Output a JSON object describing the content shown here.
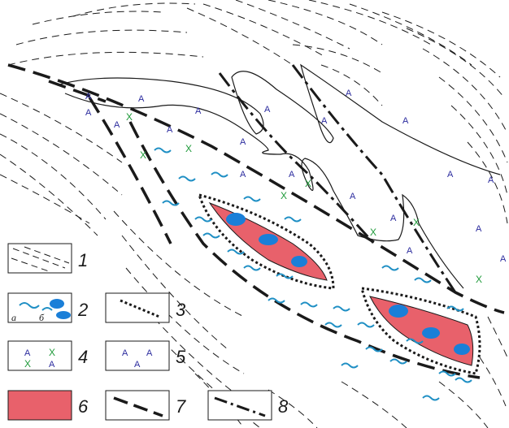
{
  "colors": {
    "ore_body": "#e8616b",
    "blue_blob": "#1a7fd8",
    "wave": "#1f8fc4",
    "augite_x": "#1f9a3a",
    "a_symbol": "#2b2b9e",
    "line": "#1a1a1a"
  },
  "symbols": {
    "a": "A",
    "x": "X",
    "sub_a": "а",
    "sub_b": "б"
  },
  "legend": [
    {
      "num": "1",
      "icon": "dashed-hatch-icon"
    },
    {
      "num": "2",
      "icon": "wave-and-blob-icon"
    },
    {
      "num": "3",
      "icon": "dotted-line-icon"
    },
    {
      "num": "4",
      "icon": "a-x-symbols-icon"
    },
    {
      "num": "5",
      "icon": "a-symbols-icon"
    },
    {
      "num": "6",
      "icon": "red-fill-icon"
    },
    {
      "num": "7",
      "icon": "dash-line-icon"
    },
    {
      "num": "8",
      "icon": "dash-dot-line-icon"
    }
  ]
}
